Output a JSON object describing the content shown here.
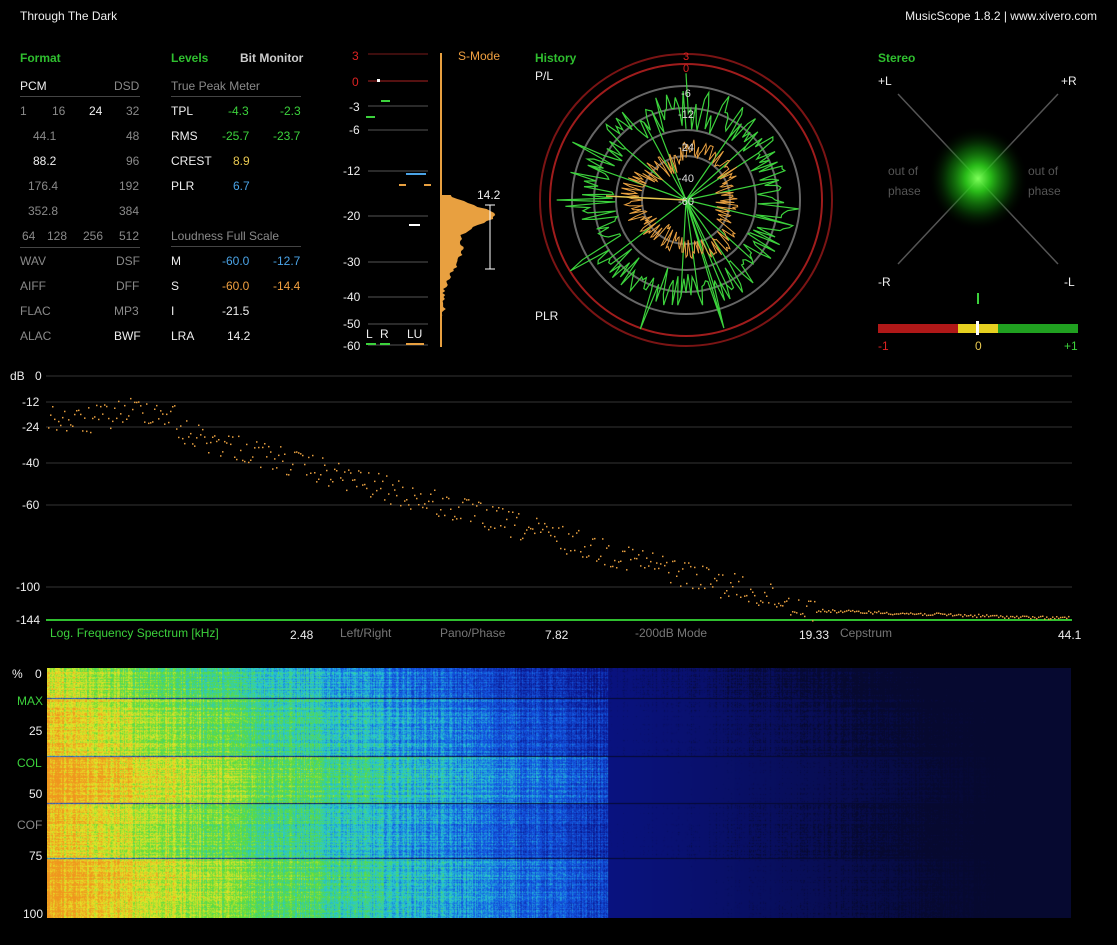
{
  "window": {
    "track_title": "Through The Dark",
    "app_title": "MusicScope 1.8.2 | www.xivero.com"
  },
  "format": {
    "header": "Format",
    "pcm": "PCM",
    "dsd": "DSD",
    "bits": [
      "1",
      "16",
      "24",
      "32"
    ],
    "rates": [
      [
        "44.1",
        "48"
      ],
      [
        "88.2",
        "96"
      ],
      [
        "176.4",
        "192"
      ],
      [
        "352.8",
        "384"
      ]
    ],
    "dsd_rates": [
      "64",
      "128",
      "256",
      "512"
    ],
    "types": [
      [
        "WAV",
        "DSF"
      ],
      [
        "AIFF",
        "DFF"
      ],
      [
        "FLAC",
        "MP3"
      ],
      [
        "ALAC",
        "BWF"
      ]
    ]
  },
  "levels": {
    "header": "Levels",
    "bit_monitor": "Bit Monitor",
    "true_peak_header": "True Peak Meter",
    "rows": [
      {
        "label": "TPL",
        "v1": "-4.3",
        "v2": "-2.3"
      },
      {
        "label": "RMS",
        "v1": "-25.7",
        "v2": "-23.7"
      },
      {
        "label": "CREST",
        "v1": "8.9"
      },
      {
        "label": "PLR",
        "v1": "6.7"
      }
    ],
    "loudness_header": "Loudness Full Scale",
    "loud_rows": [
      {
        "label": "M",
        "v1": "-60.0",
        "v2": "-12.7"
      },
      {
        "label": "S",
        "v1": "-60.0",
        "v2": "-14.4"
      },
      {
        "label": "I",
        "v1": "-21.5"
      },
      {
        "label": "LRA",
        "v1": "14.2"
      }
    ]
  },
  "meter": {
    "scale": [
      "3",
      "0",
      "-3",
      "-6",
      "-12",
      "-20",
      "-30",
      "-40",
      "-50",
      "-60"
    ],
    "mode": "S-Mode",
    "channels": [
      "L",
      "R",
      "LU"
    ],
    "lra_value": "14.2"
  },
  "history": {
    "header": "History",
    "pl": "P/L",
    "plr": "PLR",
    "ring_labels": [
      "3",
      "0",
      "-6",
      "-12",
      "-24",
      "-40",
      "-60"
    ]
  },
  "stereo": {
    "header": "Stereo",
    "corners": [
      "+L",
      "+R",
      "-R",
      "-L"
    ],
    "out_of_phase": [
      "out of",
      "phase"
    ],
    "correlation_labels": [
      "-1",
      "0",
      "+1"
    ]
  },
  "spectrum": {
    "unit": "dB",
    "y_ticks": [
      "0",
      "-12",
      "-24",
      "-40",
      "-60",
      "-100",
      "-144"
    ],
    "title": "Log. Frequency Spectrum [kHz]",
    "x_ticks": [
      "2.48",
      "7.82",
      "19.33",
      "44.1"
    ],
    "modes": [
      "Left/Right",
      "Pano/Phase",
      "-200dB Mode",
      "Cepstrum"
    ]
  },
  "spectrogram": {
    "labels": [
      "%",
      "0",
      "MAX",
      "25",
      "COL",
      "50",
      "COF",
      "75",
      "100"
    ]
  },
  "colors": {
    "accent": "#2fbf2f",
    "trace": "#e8a040",
    "blue": "#4aa3e6",
    "red": "#cc2222"
  }
}
